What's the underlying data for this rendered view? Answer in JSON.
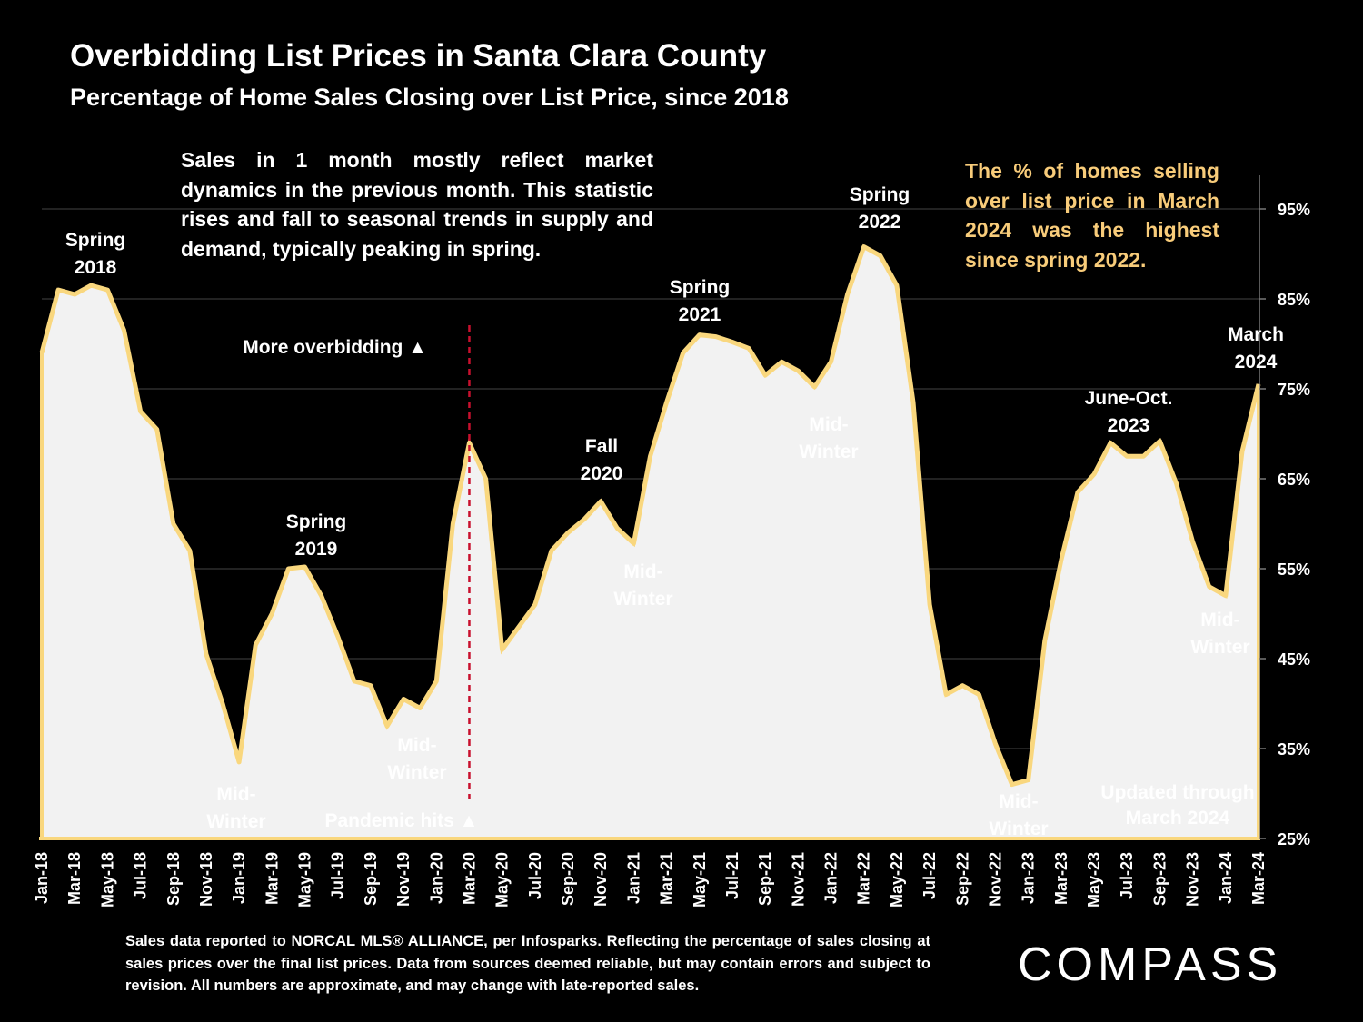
{
  "header": {
    "title": "Overbidding List Prices in Santa Clara County",
    "subtitle": "Percentage of Home Sales Closing over List Price, since 2018"
  },
  "notes": {
    "left": "Sales in 1 month mostly reflect market dynamics in the previous month. This statistic rises and fall to seasonal trends in supply and demand, typically peaking in spring.",
    "right": "The % of homes selling over list price in March 2024 was the highest since spring 2022."
  },
  "colors": {
    "background": "#000000",
    "line": "#f9d77e",
    "fill": "#f2f2f2",
    "highlight_text": "#f8cc7a",
    "marker": "#c8102e"
  },
  "chart_data": {
    "type": "area",
    "title": "Overbidding List Prices in Santa Clara County",
    "subtitle": "Percentage of Home Sales Closing over List Price, since 2018",
    "x": [
      "Jan-18",
      "Feb-18",
      "Mar-18",
      "Apr-18",
      "May-18",
      "Jun-18",
      "Jul-18",
      "Aug-18",
      "Sep-18",
      "Oct-18",
      "Nov-18",
      "Dec-18",
      "Jan-19",
      "Feb-19",
      "Mar-19",
      "Apr-19",
      "May-19",
      "Jun-19",
      "Jul-19",
      "Aug-19",
      "Sep-19",
      "Oct-19",
      "Nov-19",
      "Dec-19",
      "Jan-20",
      "Feb-20",
      "Mar-20",
      "Apr-20",
      "May-20",
      "Jun-20",
      "Jul-20",
      "Aug-20",
      "Sep-20",
      "Oct-20",
      "Nov-20",
      "Dec-20",
      "Jan-21",
      "Feb-21",
      "Mar-21",
      "Apr-21",
      "May-21",
      "Jun-21",
      "Jul-21",
      "Aug-21",
      "Sep-21",
      "Oct-21",
      "Nov-21",
      "Dec-21",
      "Jan-22",
      "Feb-22",
      "Mar-22",
      "Apr-22",
      "May-22",
      "Jun-22",
      "Jul-22",
      "Aug-22",
      "Sep-22",
      "Oct-22",
      "Nov-22",
      "Dec-22",
      "Jan-23",
      "Feb-23",
      "Mar-23",
      "Apr-23",
      "May-23",
      "Jun-23",
      "Jul-23",
      "Aug-23",
      "Sep-23",
      "Oct-23",
      "Nov-23",
      "Dec-23",
      "Jan-24",
      "Feb-24",
      "Mar-24"
    ],
    "values": [
      79,
      86,
      85.5,
      86.5,
      86,
      81.5,
      72.5,
      70.5,
      60,
      57,
      45.5,
      40,
      33.5,
      46.5,
      50,
      55,
      55.2,
      52,
      47.5,
      42.5,
      42,
      37.5,
      40.5,
      39.5,
      42.5,
      60,
      69,
      65,
      46,
      48.5,
      51,
      57,
      59,
      60.5,
      62.5,
      59.5,
      57.8,
      67.5,
      73.5,
      79,
      81,
      80.8,
      80.2,
      79.5,
      76.5,
      78,
      77,
      75.2,
      78,
      85.5,
      90.8,
      89.8,
      86.5,
      73.5,
      51,
      41,
      42,
      41,
      35.5,
      31,
      31.5,
      47,
      56,
      63.5,
      65.5,
      69,
      67.5,
      67.5,
      69.2,
      64.5,
      58,
      53,
      52,
      68,
      75.5
    ],
    "xlabel": "",
    "ylabel": "",
    "ylim": [
      25,
      100
    ],
    "y_ticks": [
      "25%",
      "35%",
      "45%",
      "55%",
      "65%",
      "75%",
      "85%",
      "95%"
    ],
    "x_tick_labels": [
      "Jan-18",
      "Mar-18",
      "May-18",
      "Jul-18",
      "Sep-18",
      "Nov-18",
      "Jan-19",
      "Mar-19",
      "May-19",
      "Jul-19",
      "Sep-19",
      "Nov-19",
      "Jan-20",
      "Mar-20",
      "May-20",
      "Jul-20",
      "Sep-20",
      "Nov-20",
      "Jan-21",
      "Mar-21",
      "May-21",
      "Jul-21",
      "Sep-21",
      "Nov-21",
      "Jan-22",
      "Mar-22",
      "May-22",
      "Jul-22",
      "Sep-22",
      "Nov-22",
      "Jan-23",
      "Mar-23",
      "May-23",
      "Jul-23",
      "Sep-23",
      "Nov-23",
      "Jan-24",
      "Mar-24"
    ],
    "grid": true,
    "y_axis_side": "right",
    "marker": {
      "label": "Pandemic hits ▲",
      "at": "Mar-20"
    },
    "annotations": [
      {
        "lines": [
          "Spring",
          "2018"
        ],
        "at": "Apr-18",
        "anchor": "above"
      },
      {
        "lines": [
          "Mid-",
          "Winter"
        ],
        "at": "Jan-19",
        "anchor": "below"
      },
      {
        "lines": [
          "Spring",
          "2019"
        ],
        "at": "May-19",
        "anchor": "above"
      },
      {
        "lines": [
          "Mid-",
          "Winter"
        ],
        "at": "Nov-19",
        "anchor": "below"
      },
      {
        "lines": [
          "More overbidding ▲"
        ],
        "at": "Oct-18",
        "anchor": "upper"
      },
      {
        "lines": [
          "Fall",
          "2020"
        ],
        "at": "Nov-20",
        "anchor": "above"
      },
      {
        "lines": [
          "Mid-",
          "Winter"
        ],
        "at": "Jan-21",
        "anchor": "below"
      },
      {
        "lines": [
          "Spring",
          "2021"
        ],
        "at": "Jun-21",
        "anchor": "above"
      },
      {
        "lines": [
          "Mid-",
          "Winter"
        ],
        "at": "Jan-22",
        "anchor": "below"
      },
      {
        "lines": [
          "Spring",
          "2022"
        ],
        "at": "Mar-22",
        "anchor": "above"
      },
      {
        "lines": [
          "Mid-",
          "Winter"
        ],
        "at": "Dec-22",
        "anchor": "below"
      },
      {
        "lines": [
          "June-Oct.",
          "2023"
        ],
        "at": "Aug-23",
        "anchor": "above"
      },
      {
        "lines": [
          "Mid-",
          "Winter"
        ],
        "at": "Feb-24",
        "anchor": "below"
      },
      {
        "lines": [
          "March",
          "2024"
        ],
        "at": "Mar-24",
        "anchor": "above"
      },
      {
        "lines": [
          "Updated through",
          "March 2024"
        ],
        "at": "Jan-24",
        "anchor": "bottom"
      }
    ]
  },
  "footer": {
    "note": "Sales data reported to NORCAL MLS® ALLIANCE, per Infosparks. Reflecting the percentage of sales closing at sales prices over the final list prices. Data from sources deemed reliable, but may contain errors and subject to revision. All numbers are approximate, and may change with late-reported sales.",
    "logo": "COMPASS"
  }
}
